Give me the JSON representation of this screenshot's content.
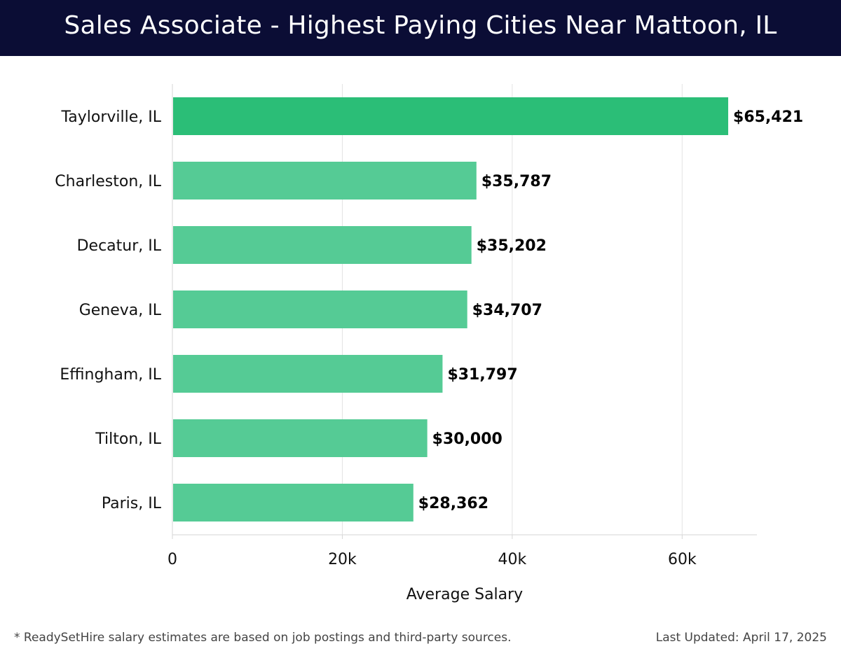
{
  "header": {
    "title": "Sales Associate - Highest Paying Cities Near Mattoon, IL"
  },
  "chart_data": {
    "type": "bar",
    "orientation": "horizontal",
    "title": "Sales Associate - Highest Paying Cities Near Mattoon, IL",
    "xlabel": "Average Salary",
    "ylabel": "",
    "categories": [
      "Taylorville, IL",
      "Charleston, IL",
      "Decatur, IL",
      "Geneva, IL",
      "Effingham, IL",
      "Tilton, IL",
      "Paris, IL"
    ],
    "values": [
      65421,
      35787,
      35202,
      34707,
      31797,
      30000,
      28362
    ],
    "value_labels": [
      "$65,421",
      "$35,787",
      "$35,202",
      "$34,707",
      "$31,797",
      "$30,000",
      "$28,362"
    ],
    "xlim": [
      0,
      68800
    ],
    "xticks": [
      0,
      20000,
      40000,
      60000
    ],
    "xtick_labels": [
      "0",
      "20k",
      "40k",
      "60k"
    ],
    "grid": true,
    "colors": {
      "top": "#2bbe77",
      "other": "#55cb95"
    }
  },
  "footer": {
    "note": "* ReadySetHire salary estimates are based on job postings and third-party sources.",
    "updated": "Last Updated: April 17, 2025"
  }
}
